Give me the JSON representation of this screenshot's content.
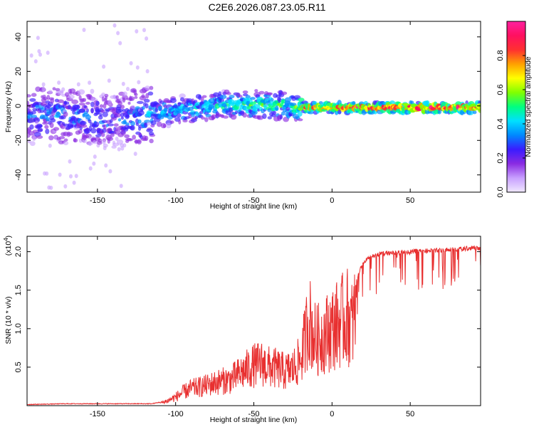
{
  "title": "C2E6.2026.087.23.05.R11",
  "chart_data": [
    {
      "type": "heatmap",
      "panel": "spectrogram",
      "xlabel": "Height of straight line (km)",
      "ylabel": "Frequency (Hz)",
      "xlim": [
        -195,
        95
      ],
      "ylim": [
        -50,
        49
      ],
      "x_ticks": [
        -150,
        -100,
        -50,
        0,
        50
      ],
      "x_tick_labels": [
        "-150",
        "-100",
        "-50",
        "0",
        "50"
      ],
      "y_ticks": [
        -40,
        -20,
        0,
        20,
        40
      ],
      "y_tick_labels": [
        "-40",
        "-20",
        "0",
        "20",
        "40"
      ],
      "colorbar": {
        "label": "Normalized spectral amplitude",
        "range": [
          0,
          1
        ],
        "ticks": [
          0.0,
          0.2,
          0.4,
          0.6,
          0.8
        ],
        "tick_labels": [
          "0.0",
          "0.2",
          "0.4",
          "0.6",
          "0.8"
        ],
        "colors": [
          "#f0e8ff",
          "#c8a0ff",
          "#8a2be2",
          "#3a1cff",
          "#0088ff",
          "#00e0ff",
          "#00ff80",
          "#80ff00",
          "#ffff00",
          "#ffa000",
          "#ff3030",
          "#ff1060",
          "#ff20a0"
        ]
      },
      "ridge": [
        {
          "x": -160,
          "f": -6,
          "amp": 0.35
        },
        {
          "x": -140,
          "f": -9,
          "amp": 0.3
        },
        {
          "x": -115,
          "f": -5,
          "amp": 0.4
        },
        {
          "x": -95,
          "f": -2,
          "amp": 0.45
        },
        {
          "x": -75,
          "f": 0,
          "amp": 0.5
        },
        {
          "x": -50,
          "f": 1,
          "amp": 0.55
        },
        {
          "x": -25,
          "f": 0,
          "amp": 0.55
        },
        {
          "x": -15,
          "f": -1,
          "amp": 0.85
        },
        {
          "x": 0,
          "f": -1,
          "amp": 0.9
        },
        {
          "x": 30,
          "f": -1,
          "amp": 0.95
        },
        {
          "x": 60,
          "f": -1,
          "amp": 1.0
        },
        {
          "x": 92,
          "f": -1,
          "amp": 0.95
        }
      ]
    },
    {
      "type": "line",
      "panel": "snr",
      "xlabel": "Height of straight line (km)",
      "ylabel": "SNR (10 * v/v)",
      "y_scale_label": "(x10",
      "y_scale_exponent": "4",
      "xlim": [
        -195,
        95
      ],
      "ylim": [
        0,
        2.2
      ],
      "x_ticks": [
        -150,
        -100,
        -50,
        0,
        50
      ],
      "x_tick_labels": [
        "-150",
        "-100",
        "-50",
        "0",
        "50"
      ],
      "y_ticks": [
        0.5,
        1.0,
        1.5,
        2.0
      ],
      "y_tick_labels": [
        "0.5",
        "1.0",
        "1.5",
        "2.0"
      ],
      "color": "#e83030",
      "series": [
        {
          "name": "SNR",
          "x": [
            -195,
            -170,
            -150,
            -130,
            -115,
            -110,
            -105,
            -100,
            -95,
            -90,
            -85,
            -80,
            -75,
            -70,
            -65,
            -60,
            -55,
            -50,
            -45,
            -40,
            -35,
            -30,
            -25,
            -20,
            -17,
            -15,
            -12,
            -10,
            -5,
            0,
            5,
            10,
            13,
            15,
            18,
            20,
            25,
            30,
            40,
            50,
            60,
            70,
            80,
            85,
            90,
            95
          ],
          "y": [
            0.01,
            0.02,
            0.02,
            0.02,
            0.02,
            0.04,
            0.08,
            0.14,
            0.22,
            0.28,
            0.3,
            0.33,
            0.37,
            0.4,
            0.42,
            0.5,
            0.58,
            0.65,
            0.68,
            0.62,
            0.6,
            0.55,
            0.6,
            0.75,
            1.1,
            1.45,
            1.15,
            1.05,
            1.15,
            1.25,
            1.35,
            1.45,
            1.3,
            1.55,
            1.75,
            1.85,
            1.92,
            1.95,
            1.97,
            1.98,
            1.99,
            2.0,
            2.01,
            2.02,
            2.03,
            2.02
          ]
        }
      ]
    }
  ]
}
